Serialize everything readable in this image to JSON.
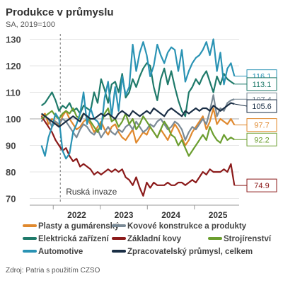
{
  "chart_data": {
    "type": "line",
    "title": "Produkce v průmyslu",
    "subtitle": "SA, 2019=100",
    "yticks": [
      70,
      80,
      90,
      100,
      110,
      120,
      130
    ],
    "ylim": [
      68,
      132
    ],
    "xlim": [
      2021.5,
      2025.95
    ],
    "xticks": [
      {
        "label": "2022",
        "x": 2022.5
      },
      {
        "label": "2023",
        "x": 2023.5
      },
      {
        "label": "2024",
        "x": 2024.5
      },
      {
        "label": "2025",
        "x": 2025.5
      }
    ],
    "year_dividers": [
      2022,
      2023,
      2024,
      2025
    ],
    "annotation": {
      "text": "Ruská invaze",
      "x": 2022.15
    },
    "reference_line": 100,
    "series": [
      {
        "name": "Plasty a gumárenský",
        "color": "#E0892E",
        "end_label": "97.7",
        "values": [
          101,
          102,
          98,
          100,
          99,
          97,
          101,
          103,
          100,
          98,
          96,
          97,
          99,
          100,
          98,
          95,
          97,
          99,
          96,
          94,
          97,
          98,
          95,
          93,
          92,
          94,
          96,
          91,
          93,
          95,
          94,
          97,
          95,
          93,
          96,
          94,
          92,
          95,
          98,
          96,
          93,
          90,
          92,
          95,
          97,
          99,
          101,
          96,
          99,
          104,
          98,
          100,
          99,
          98,
          100,
          97.7
        ]
      },
      {
        "name": "Kovové konstrukce a produkty",
        "color": "#7A8A96",
        "end_label": "107.4",
        "values": [
          99,
          101,
          100,
          97,
          99,
          98,
          100,
          99,
          97,
          95,
          93,
          96,
          98,
          97,
          95,
          94,
          96,
          93,
          95,
          97,
          95,
          94,
          96,
          95,
          97,
          98,
          96,
          99,
          97,
          95,
          96,
          98,
          97,
          99,
          100,
          98,
          96,
          97,
          99,
          98,
          96,
          92,
          95,
          97,
          96,
          98,
          100,
          98,
          103,
          109,
          101,
          104,
          103,
          106,
          107,
          107.4
        ]
      },
      {
        "name": "Elektrická zařízení",
        "color": "#1F7A6A",
        "end_label": "113.1",
        "values": [
          105,
          106,
          108,
          110,
          107,
          103,
          105,
          104,
          106,
          103,
          104,
          102,
          105,
          104,
          103,
          110,
          106,
          115,
          111,
          106,
          113,
          114,
          110,
          117,
          108,
          110,
          115,
          112,
          116,
          119,
          121,
          120,
          112,
          107,
          115,
          119,
          113,
          118,
          112,
          107,
          103,
          101,
          110,
          112,
          115,
          113,
          116,
          118,
          114,
          110,
          116,
          113,
          117,
          115,
          114,
          113.1
        ]
      },
      {
        "name": "Základní kovy",
        "color": "#8B1A1A",
        "end_label": "74.9",
        "values": [
          101,
          99,
          97,
          95,
          92,
          90,
          88,
          89,
          86,
          84,
          85,
          82,
          83,
          82,
          81,
          79,
          80,
          79,
          80,
          81,
          80,
          81,
          80,
          81,
          78,
          77,
          75,
          78,
          74,
          71,
          76,
          74,
          76,
          75,
          75,
          75,
          76,
          75,
          75,
          76,
          76,
          75,
          76,
          77,
          76,
          78,
          80,
          79,
          81,
          80,
          80,
          80,
          81,
          80,
          83,
          74.9
        ]
      },
      {
        "name": "Strojírenství",
        "color": "#6B9E2F",
        "end_label": "92.2",
        "values": [
          100,
          101,
          102,
          103,
          101,
          100,
          102,
          103,
          102,
          104,
          101,
          100,
          102,
          101,
          99,
          97,
          95,
          98,
          102,
          104,
          99,
          100,
          97,
          99,
          102,
          98,
          100,
          96,
          98,
          101,
          99,
          97,
          95,
          93,
          96,
          99,
          97,
          94,
          93,
          90,
          92,
          89,
          86,
          88,
          90,
          92,
          94,
          92,
          97,
          94,
          92,
          91,
          94,
          92,
          93,
          92.2
        ]
      },
      {
        "name": "Automotive",
        "color": "#2A93B4",
        "end_label": "116.1",
        "values": [
          90,
          86,
          93,
          97,
          102,
          100,
          88,
          85,
          87,
          95,
          98,
          102,
          110,
          98,
          104,
          100,
          99,
          96,
          108,
          114,
          101,
          112,
          103,
          116,
          109,
          112,
          128,
          118,
          125,
          129,
          124,
          116,
          120,
          128,
          124,
          121,
          125,
          127,
          126,
          118,
          126,
          114,
          118,
          121,
          123,
          124,
          126,
          129,
          124,
          130,
          118,
          125,
          113,
          119,
          121,
          116.1
        ]
      },
      {
        "name": "Zpracovatelský průmysl, celkem",
        "color": "#1A2E45",
        "end_label": "105.6",
        "values": [
          102,
          101,
          100,
          99,
          98,
          97,
          98,
          99,
          100,
          101,
          100,
          99,
          102,
          101,
          100,
          100,
          101,
          102,
          101,
          102,
          101,
          100,
          102,
          103,
          102,
          101,
          103,
          102,
          101,
          102,
          103,
          102,
          104,
          103,
          102,
          101,
          103,
          104,
          103,
          102,
          101,
          103,
          102,
          103,
          104,
          103,
          104,
          104,
          103,
          105,
          104,
          103,
          104,
          105,
          106,
          105.6
        ]
      }
    ],
    "end_labels_order": [
      {
        "series": 5,
        "label_y": 116.1
      },
      {
        "series": 2,
        "label_y": 113.1
      },
      {
        "series": 1,
        "label_y": 107.4
      },
      {
        "series": 6,
        "label_y": 104.8
      },
      {
        "series": 0,
        "label_y": 97.7
      },
      {
        "series": 4,
        "label_y": 92.2
      },
      {
        "series": 3,
        "label_y": 74.9
      }
    ],
    "legend": [
      {
        "series": 0,
        "row": 0,
        "col": 0
      },
      {
        "series": 1,
        "row": 0,
        "col": 1
      },
      {
        "series": 2,
        "row": 1,
        "col": 0
      },
      {
        "series": 3,
        "row": 1,
        "col": 1
      },
      {
        "series": 4,
        "row": 1,
        "col": 2
      },
      {
        "series": 5,
        "row": 2,
        "col": 0
      },
      {
        "series": 6,
        "row": 2,
        "col": 1
      }
    ],
    "source": "Zdroj: Patria s použitím CZSO"
  }
}
